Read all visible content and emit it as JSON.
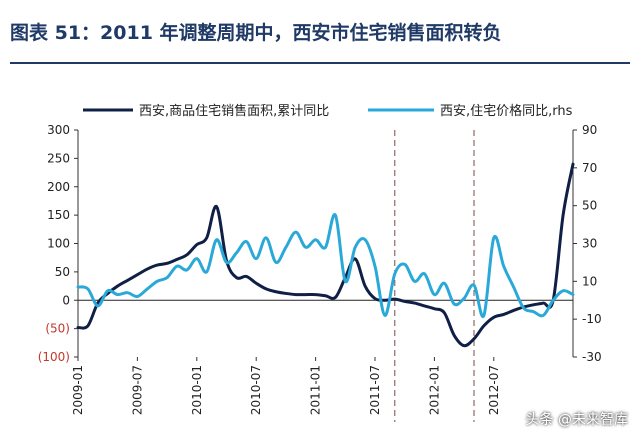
{
  "title": "图表 51：2011 年调整周期中，西安市住宅销售面积转负",
  "watermark": "头条 @未来智库",
  "colors": {
    "series1": "#0f1f45",
    "series2": "#2aa9d8",
    "negative_tick": "#c0392b",
    "title": "#1f3a66"
  },
  "chart_data": {
    "type": "line",
    "x_tick_labels": [
      "2009-01",
      "2009-07",
      "2010-01",
      "2010-07",
      "2011-01",
      "2011-07",
      "2012-01",
      "2012-07"
    ],
    "x_range": [
      "2009-01",
      "2013-03"
    ],
    "y_left": {
      "range": [
        -100,
        300
      ],
      "tick_labels": [
        "300",
        "250",
        "200",
        "150",
        "100",
        "50",
        "0",
        "(50)",
        "(100)"
      ]
    },
    "y_right": {
      "range": [
        -30,
        90
      ],
      "label": "rhs",
      "tick_labels": [
        "90",
        "70",
        "50",
        "30",
        "10",
        "-10",
        "-30"
      ]
    },
    "reference_lines": [
      "2011-09",
      "2012-05"
    ],
    "legend_position": "top",
    "grid": false,
    "series": [
      {
        "name": "西安,商品住宅销售面积,累计同比",
        "axis": "left",
        "points": [
          [
            "2009-01",
            -48
          ],
          [
            "2009-02",
            -45
          ],
          [
            "2009-03",
            -5
          ],
          [
            "2009-04",
            12
          ],
          [
            "2009-05",
            25
          ],
          [
            "2009-06",
            35
          ],
          [
            "2009-07",
            45
          ],
          [
            "2009-08",
            55
          ],
          [
            "2009-09",
            62
          ],
          [
            "2009-10",
            65
          ],
          [
            "2009-11",
            72
          ],
          [
            "2009-12",
            80
          ],
          [
            "2010-01",
            98
          ],
          [
            "2010-02",
            110
          ],
          [
            "2010-03",
            165
          ],
          [
            "2010-04",
            70
          ],
          [
            "2010-05",
            40
          ],
          [
            "2010-06",
            42
          ],
          [
            "2010-07",
            30
          ],
          [
            "2010-08",
            20
          ],
          [
            "2010-09",
            15
          ],
          [
            "2010-10",
            12
          ],
          [
            "2010-11",
            10
          ],
          [
            "2010-12",
            10
          ],
          [
            "2011-01",
            10
          ],
          [
            "2011-02",
            8
          ],
          [
            "2011-03",
            5
          ],
          [
            "2011-04",
            40
          ],
          [
            "2011-05",
            73
          ],
          [
            "2011-06",
            25
          ],
          [
            "2011-07",
            3
          ],
          [
            "2011-08",
            0
          ],
          [
            "2011-09",
            2
          ],
          [
            "2011-10",
            -2
          ],
          [
            "2011-11",
            -5
          ],
          [
            "2011-12",
            -10
          ],
          [
            "2012-01",
            -15
          ],
          [
            "2012-02",
            -22
          ],
          [
            "2012-03",
            -62
          ],
          [
            "2012-04",
            -80
          ],
          [
            "2012-05",
            -68
          ],
          [
            "2012-06",
            -45
          ],
          [
            "2012-07",
            -30
          ],
          [
            "2012-08",
            -25
          ],
          [
            "2012-09",
            -18
          ],
          [
            "2012-10",
            -12
          ],
          [
            "2012-11",
            -8
          ],
          [
            "2012-12",
            -5
          ],
          [
            "2013-01",
            0
          ],
          [
            "2013-02",
            150
          ],
          [
            "2013-03",
            240
          ]
        ]
      },
      {
        "name": "西安,住宅价格同比,rhs",
        "axis": "right",
        "points": [
          [
            "2009-01",
            7
          ],
          [
            "2009-02",
            6
          ],
          [
            "2009-03",
            -3
          ],
          [
            "2009-04",
            5
          ],
          [
            "2009-05",
            3
          ],
          [
            "2009-06",
            4
          ],
          [
            "2009-07",
            2
          ],
          [
            "2009-08",
            6
          ],
          [
            "2009-09",
            10
          ],
          [
            "2009-10",
            12
          ],
          [
            "2009-11",
            18
          ],
          [
            "2009-12",
            16
          ],
          [
            "2010-01",
            22
          ],
          [
            "2010-02",
            15
          ],
          [
            "2010-03",
            32
          ],
          [
            "2010-04",
            20
          ],
          [
            "2010-05",
            25
          ],
          [
            "2010-06",
            31
          ],
          [
            "2010-07",
            22
          ],
          [
            "2010-08",
            33
          ],
          [
            "2010-09",
            20
          ],
          [
            "2010-10",
            28
          ],
          [
            "2010-11",
            36
          ],
          [
            "2010-12",
            28
          ],
          [
            "2011-01",
            32
          ],
          [
            "2011-02",
            28
          ],
          [
            "2011-03",
            45
          ],
          [
            "2011-04",
            10
          ],
          [
            "2011-05",
            28
          ],
          [
            "2011-06",
            32
          ],
          [
            "2011-07",
            18
          ],
          [
            "2011-08",
            -8
          ],
          [
            "2011-09",
            14
          ],
          [
            "2011-10",
            19
          ],
          [
            "2011-11",
            10
          ],
          [
            "2011-12",
            14
          ],
          [
            "2012-01",
            3
          ],
          [
            "2012-02",
            9
          ],
          [
            "2012-03",
            -2
          ],
          [
            "2012-04",
            1
          ],
          [
            "2012-05",
            8
          ],
          [
            "2012-06",
            -8
          ],
          [
            "2012-07",
            33
          ],
          [
            "2012-08",
            18
          ],
          [
            "2012-09",
            7
          ],
          [
            "2012-10",
            -4
          ],
          [
            "2012-11",
            -6
          ],
          [
            "2012-12",
            -8
          ],
          [
            "2013-01",
            0
          ],
          [
            "2013-02",
            5
          ],
          [
            "2013-03",
            3
          ]
        ]
      }
    ]
  }
}
